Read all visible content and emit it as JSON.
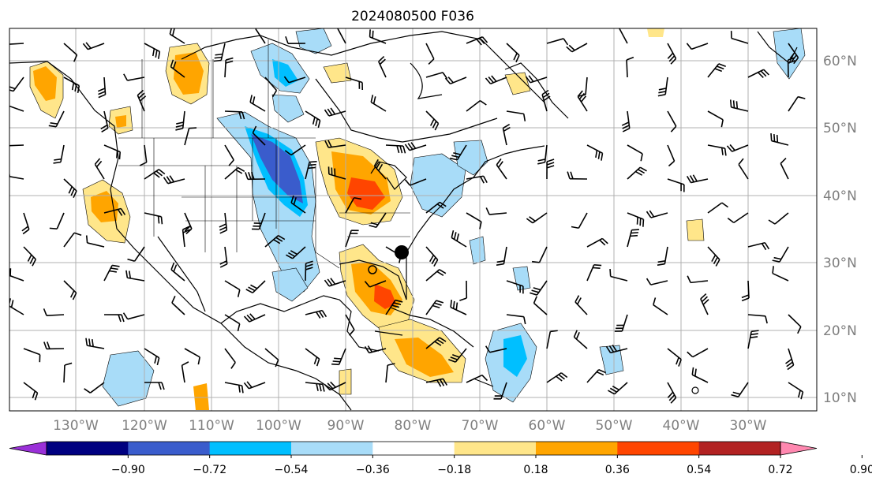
{
  "title": "2024080500 F036",
  "longitude_labels": [
    "130°W",
    "120°W",
    "110°W",
    "100°W",
    "90°W",
    "80°W",
    "70°W",
    "60°W",
    "50°W",
    "40°W",
    "30°W"
  ],
  "latitude_labels": [
    "60°N",
    "50°N",
    "40°N",
    "30°N",
    "20°N",
    "10°N"
  ],
  "colorbar": {
    "ticks": [
      "−0.90",
      "−0.72",
      "−0.54",
      "−0.36",
      "−0.18",
      "0.18",
      "0.36",
      "0.54",
      "0.72",
      "0.90"
    ],
    "colors": [
      "#9a30d8",
      "#000080",
      "#3a5ccc",
      "#00bfff",
      "#a8dcf8",
      "#ffffff",
      "#ffe68a",
      "#ffa500",
      "#ff4500",
      "#b22222",
      "#ff88b0"
    ]
  },
  "colors": {
    "grid": "#b0b0b0",
    "coast": "#000000",
    "neg_light": "#a8dcf8",
    "neg_mid": "#00bfff",
    "neg_dark": "#3a5ccc",
    "pos_light": "#ffe68a",
    "pos_mid": "#ffa500",
    "pos_dark": "#ff4500"
  },
  "markers": [
    {
      "name": "storm-center",
      "lon": -81.5,
      "lat": 31.8
    }
  ]
}
